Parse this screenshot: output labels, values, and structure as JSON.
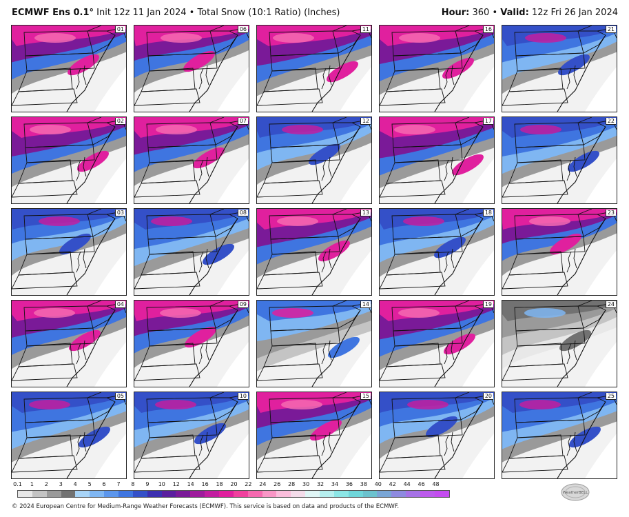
{
  "header": {
    "brand": "ECMWF Ens 0.1°",
    "init": " Init 12z 11 Jan 2024 • Total Snow (10:1 Ratio) (Inches)",
    "hour_label": "Hour:",
    "hour_value": " 360 • ",
    "valid_label": "Valid:",
    "valid_value": " 12z Fri 26 Jan 2024"
  },
  "members": [
    {
      "id": "01",
      "scheme": "red"
    },
    {
      "id": "06",
      "scheme": "red"
    },
    {
      "id": "11",
      "scheme": "red"
    },
    {
      "id": "16",
      "scheme": "red"
    },
    {
      "id": "21",
      "scheme": "blue"
    },
    {
      "id": "02",
      "scheme": "red"
    },
    {
      "id": "07",
      "scheme": "red"
    },
    {
      "id": "12",
      "scheme": "blue"
    },
    {
      "id": "17",
      "scheme": "red"
    },
    {
      "id": "22",
      "scheme": "blue"
    },
    {
      "id": "03",
      "scheme": "blue"
    },
    {
      "id": "08",
      "scheme": "blue"
    },
    {
      "id": "13",
      "scheme": "red"
    },
    {
      "id": "18",
      "scheme": "blue"
    },
    {
      "id": "23",
      "scheme": "red"
    },
    {
      "id": "04",
      "scheme": "red"
    },
    {
      "id": "09",
      "scheme": "red"
    },
    {
      "id": "14",
      "scheme": "light"
    },
    {
      "id": "19",
      "scheme": "red"
    },
    {
      "id": "24",
      "scheme": "grey"
    },
    {
      "id": "05",
      "scheme": "blue"
    },
    {
      "id": "10",
      "scheme": "blue"
    },
    {
      "id": "15",
      "scheme": "red"
    },
    {
      "id": "20",
      "scheme": "blue"
    },
    {
      "id": "25",
      "scheme": "blue"
    }
  ],
  "scale": {
    "labels": [
      "0.1",
      "1",
      "2",
      "3",
      "4",
      "5",
      "6",
      "7",
      "8",
      "9",
      "10",
      "12",
      "14",
      "16",
      "18",
      "20",
      "22",
      "24",
      "26",
      "28",
      "30",
      "32",
      "34",
      "36",
      "38",
      "40",
      "42",
      "44",
      "46",
      "48"
    ],
    "colors": [
      "#e8e8e8",
      "#c4c4c4",
      "#9a9a9a",
      "#727272",
      "#a8d4f7",
      "#7fb6f2",
      "#5c96ec",
      "#3f75e0",
      "#3450c8",
      "#3c2fb0",
      "#5a1e9e",
      "#7a1a98",
      "#9e1c9c",
      "#c21ea0",
      "#e0209e",
      "#f0409e",
      "#f56ab0",
      "#f996c6",
      "#fbbedc",
      "#f4dcea",
      "#e0f6f6",
      "#b6efef",
      "#8ce6e6",
      "#6fd6da",
      "#6cc2ce",
      "#7aa6d6",
      "#8e8ae0",
      "#a672e6",
      "#bc5aec",
      "#c44cf0"
    ]
  },
  "footer": {
    "text": "© 2024 European Centre for Medium-Range Weather Forecasts (ECMWF). This service is based on data and products of the ECMWF."
  },
  "logo": {
    "text": "WeatherBELL"
  },
  "colors": {
    "water": "#ffffff",
    "land": "#f2f2f2",
    "border": "#111111"
  }
}
